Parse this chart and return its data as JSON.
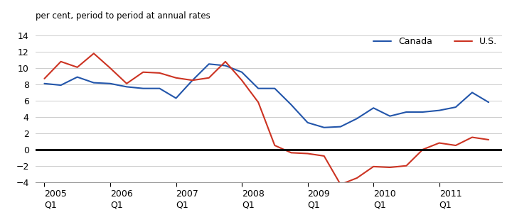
{
  "title": "per cent, period to period at annual rates",
  "canada_x": [
    2005.0,
    2005.25,
    2005.5,
    2005.75,
    2006.0,
    2006.25,
    2006.5,
    2006.75,
    2007.0,
    2007.25,
    2007.5,
    2007.75,
    2008.0,
    2008.25,
    2008.5,
    2008.75,
    2009.0,
    2009.25,
    2009.5,
    2009.75,
    2010.0,
    2010.25,
    2010.5,
    2010.75,
    2011.0,
    2011.25,
    2011.5,
    2011.75
  ],
  "canada_y": [
    8.1,
    7.9,
    8.9,
    8.2,
    8.1,
    7.7,
    7.5,
    7.5,
    6.3,
    8.5,
    10.5,
    10.3,
    9.5,
    7.5,
    7.5,
    5.5,
    3.3,
    2.7,
    2.8,
    3.8,
    5.1,
    4.1,
    4.6,
    4.6,
    4.8,
    5.2,
    7.0,
    5.8
  ],
  "us_x": [
    2005.0,
    2005.25,
    2005.5,
    2005.75,
    2006.0,
    2006.25,
    2006.5,
    2006.75,
    2007.0,
    2007.25,
    2007.5,
    2007.75,
    2008.0,
    2008.25,
    2008.5,
    2008.75,
    2009.0,
    2009.25,
    2009.5,
    2009.75,
    2010.0,
    2010.25,
    2010.5,
    2010.75,
    2011.0,
    2011.25,
    2011.5,
    2011.75
  ],
  "us_y": [
    8.7,
    10.8,
    10.1,
    11.8,
    10.0,
    8.1,
    9.5,
    9.4,
    8.8,
    8.5,
    8.8,
    10.8,
    8.5,
    5.8,
    0.5,
    -0.4,
    -0.5,
    -0.8,
    -4.3,
    -3.5,
    -2.1,
    -2.2,
    -2.0,
    0.0,
    0.8,
    0.5,
    1.5,
    1.2
  ],
  "canada_color": "#2255aa",
  "us_color": "#cc3322",
  "background_color": "#ffffff",
  "grid_color": "#cccccc",
  "ylim": [
    -4,
    14
  ],
  "yticks": [
    -4,
    -2,
    0,
    2,
    4,
    6,
    8,
    10,
    12,
    14
  ],
  "xlim": [
    2004.87,
    2011.95
  ],
  "year_ticks": [
    2005,
    2006,
    2007,
    2008,
    2009,
    2010,
    2011
  ],
  "legend_canada": "Canada",
  "legend_us": "U.S.",
  "line_width": 1.5
}
